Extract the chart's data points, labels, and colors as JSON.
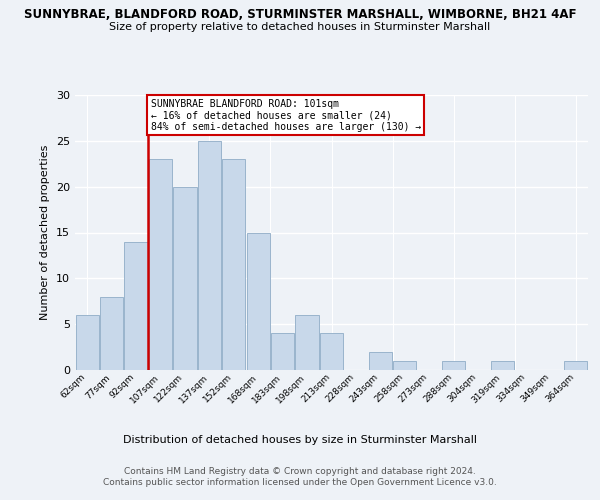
{
  "title1": "SUNNYBRAE, BLANDFORD ROAD, STURMINSTER MARSHALL, WIMBORNE, BH21 4AF",
  "title2": "Size of property relative to detached houses in Sturminster Marshall",
  "xlabel": "Distribution of detached houses by size in Sturminster Marshall",
  "ylabel": "Number of detached properties",
  "bin_labels": [
    "62sqm",
    "77sqm",
    "92sqm",
    "107sqm",
    "122sqm",
    "137sqm",
    "152sqm",
    "168sqm",
    "183sqm",
    "198sqm",
    "213sqm",
    "228sqm",
    "243sqm",
    "258sqm",
    "273sqm",
    "288sqm",
    "304sqm",
    "319sqm",
    "334sqm",
    "349sqm",
    "364sqm"
  ],
  "bar_values": [
    6,
    8,
    14,
    23,
    20,
    25,
    23,
    15,
    4,
    6,
    4,
    0,
    2,
    1,
    0,
    1,
    0,
    1,
    0,
    0,
    1
  ],
  "bar_color": "#c8d8ea",
  "bar_edge_color": "#9ab4cc",
  "vline_color": "#cc0000",
  "vline_x_index": 2,
  "annotation_text": "SUNNYBRAE BLANDFORD ROAD: 101sqm\n← 16% of detached houses are smaller (24)\n84% of semi-detached houses are larger (130) →",
  "annotation_box_edge_color": "#cc0000",
  "ylim": [
    0,
    30
  ],
  "yticks": [
    0,
    5,
    10,
    15,
    20,
    25,
    30
  ],
  "footer": "Contains HM Land Registry data © Crown copyright and database right 2024.\nContains public sector information licensed under the Open Government Licence v3.0.",
  "background_color": "#eef2f7"
}
